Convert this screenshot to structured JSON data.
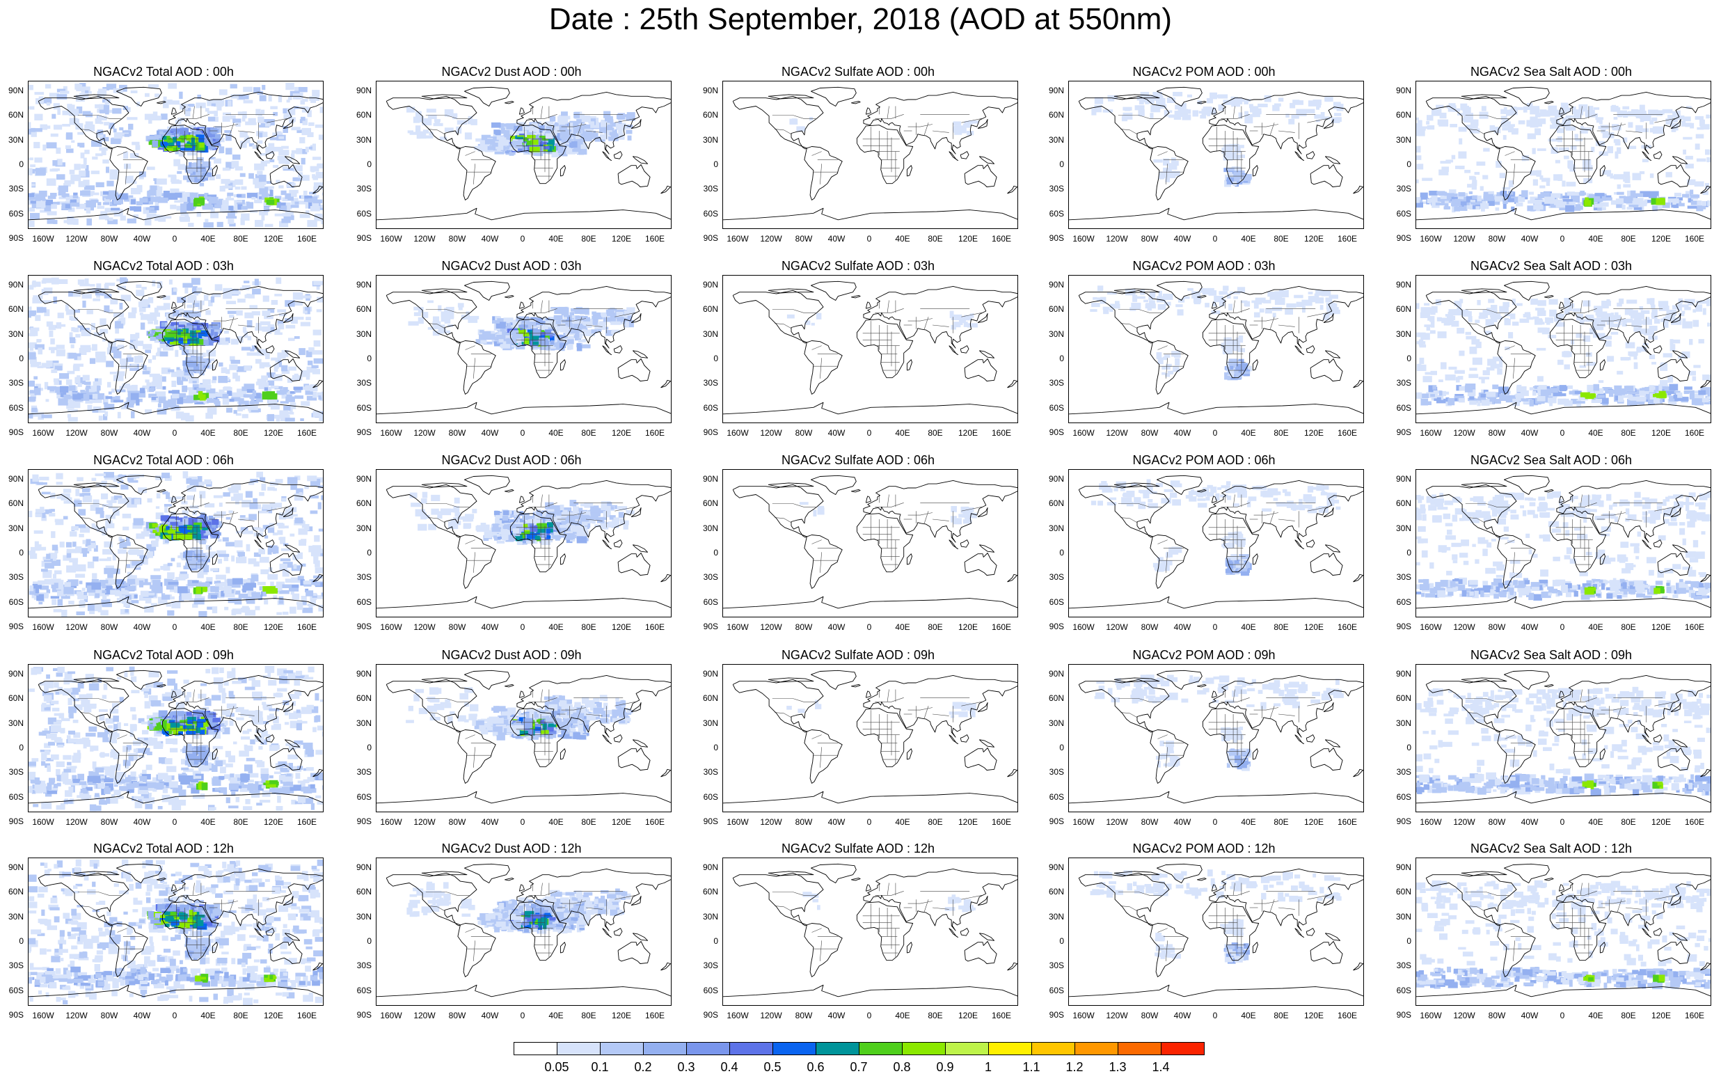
{
  "title": "Date : 25th September, 2018 (AOD at 550nm)",
  "lat_labels": [
    "90N",
    "60N",
    "30N",
    "0",
    "30S",
    "60S",
    "90S"
  ],
  "lon_labels": [
    "160W",
    "120W",
    "80W",
    "40W",
    "0",
    "40E",
    "80E",
    "120E",
    "160E"
  ],
  "panels": [
    [
      "NGACv2 Total AOD : 00h",
      "NGACv2 Dust AOD : 00h",
      "NGACv2 Sulfate AOD : 00h",
      "NGACv2 POM AOD : 00h",
      "NGACv2 Sea Salt AOD : 00h"
    ],
    [
      "NGACv2 Total AOD : 03h",
      "NGACv2 Dust AOD : 03h",
      "NGACv2 Sulfate AOD : 03h",
      "NGACv2 POM AOD : 03h",
      "NGACv2 Sea Salt AOD : 03h"
    ],
    [
      "NGACv2 Total AOD : 06h",
      "NGACv2 Dust AOD : 06h",
      "NGACv2 Sulfate AOD : 06h",
      "NGACv2 POM AOD : 06h",
      "NGACv2 Sea Salt AOD : 06h"
    ],
    [
      "NGACv2 Total AOD : 09h",
      "NGACv2 Dust AOD : 09h",
      "NGACv2 Sulfate AOD : 09h",
      "NGACv2 POM AOD : 09h",
      "NGACv2 Sea Salt  AOD : 09h"
    ],
    [
      "NGACv2 Total AOD : 12h",
      "NGACv2 Dust AOD : 12h",
      "NGACv2 Sulfate AOD : 12h",
      "NGACv2 POM  AOD : 12h",
      "NGACv2 Sea Salt  AOD : 12h"
    ]
  ],
  "colorbar": {
    "labels": [
      "0.05",
      "0.1",
      "0.2",
      "0.3",
      "0.4",
      "0.5",
      "0.6",
      "0.7",
      "0.8",
      "0.9",
      "1",
      "1.1",
      "1.2",
      "1.3",
      "1.4"
    ],
    "colors": [
      "#ffffff",
      "#d7e3fb",
      "#b4c9f6",
      "#94b0f0",
      "#7a96ec",
      "#5d73e8",
      "#0a64f0",
      "#00949a",
      "#4fcf1c",
      "#8be800",
      "#bef34a",
      "#fff000",
      "#ffc600",
      "#ff9800",
      "#fb6a00",
      "#fa2400"
    ]
  }
}
